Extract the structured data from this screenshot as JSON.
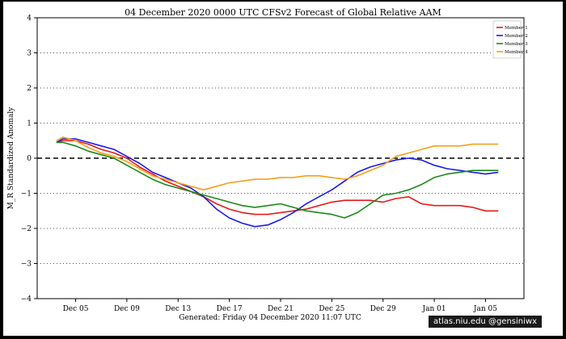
{
  "chart_data": {
    "type": "line",
    "title": "04 December 2020 0000 UTC CFSv2 Forecast of Global Relative AAM",
    "ylabel": "M_R Standardized Anomaly",
    "ylim": [
      -4,
      4
    ],
    "yticks": [
      -4,
      -3,
      -2,
      -1,
      0,
      1,
      2,
      3,
      4
    ],
    "ytick_labels": [
      "−4",
      "−3",
      "−2",
      "−1",
      "0",
      "1",
      "2",
      "3",
      "4"
    ],
    "xlim": [
      0,
      38
    ],
    "xticks": [
      {
        "x": 3,
        "label": "Dec 05"
      },
      {
        "x": 7,
        "label": "Dec 09"
      },
      {
        "x": 11,
        "label": "Dec 13"
      },
      {
        "x": 15,
        "label": "Dec 17"
      },
      {
        "x": 19,
        "label": "Dec 21"
      },
      {
        "x": 23,
        "label": "Dec 25"
      },
      {
        "x": 27,
        "label": "Dec 29"
      },
      {
        "x": 31,
        "label": "Jan 01"
      },
      {
        "x": 35,
        "label": "Jan 05"
      }
    ],
    "grid_lines_y": [
      -3,
      -2,
      -1,
      1,
      2,
      3
    ],
    "zero_line": 0,
    "legend_position": "top-right",
    "footer": "Generated: Friday 04 December 2020 11:07 UTC",
    "series": [
      {
        "name": "Member 1",
        "color": "#e8191a",
        "x": [
          1.5,
          2,
          3,
          4,
          5,
          6,
          7,
          8,
          9,
          10,
          11,
          12,
          13,
          14,
          15,
          16,
          17,
          18,
          19,
          20,
          21,
          22,
          23,
          24,
          25,
          26,
          27,
          28,
          29,
          30,
          31,
          32,
          33,
          34,
          35,
          36
        ],
        "y": [
          0.45,
          0.5,
          0.5,
          0.4,
          0.25,
          0.15,
          0.0,
          -0.25,
          -0.45,
          -0.65,
          -0.8,
          -0.95,
          -1.1,
          -1.3,
          -1.45,
          -1.55,
          -1.6,
          -1.6,
          -1.55,
          -1.5,
          -1.45,
          -1.35,
          -1.25,
          -1.2,
          -1.2,
          -1.2,
          -1.25,
          -1.15,
          -1.1,
          -1.3,
          -1.35,
          -1.35,
          -1.35,
          -1.4,
          -1.5,
          -1.5
        ]
      },
      {
        "name": "Member 2",
        "color": "#1a1ae8",
        "x": [
          1.5,
          2,
          3,
          4,
          5,
          6,
          7,
          8,
          9,
          10,
          11,
          12,
          13,
          14,
          15,
          16,
          17,
          18,
          19,
          20,
          21,
          22,
          23,
          24,
          25,
          26,
          27,
          28,
          29,
          30,
          31,
          32,
          33,
          34,
          35,
          36
        ],
        "y": [
          0.45,
          0.55,
          0.55,
          0.45,
          0.35,
          0.25,
          0.05,
          -0.15,
          -0.4,
          -0.55,
          -0.7,
          -0.85,
          -1.1,
          -1.45,
          -1.7,
          -1.85,
          -1.95,
          -1.9,
          -1.75,
          -1.55,
          -1.3,
          -1.1,
          -0.9,
          -0.65,
          -0.4,
          -0.25,
          -0.15,
          -0.05,
          0.0,
          -0.05,
          -0.2,
          -0.3,
          -0.35,
          -0.4,
          -0.45,
          -0.4
        ]
      },
      {
        "name": "Member 3",
        "color": "#1a8a1a",
        "x": [
          1.5,
          2,
          3,
          4,
          5,
          6,
          7,
          8,
          9,
          10,
          11,
          12,
          13,
          14,
          15,
          16,
          17,
          18,
          19,
          20,
          21,
          22,
          23,
          24,
          25,
          26,
          27,
          28,
          29,
          30,
          31,
          32,
          33,
          34,
          35,
          36
        ],
        "y": [
          0.45,
          0.45,
          0.35,
          0.2,
          0.1,
          0.0,
          -0.2,
          -0.4,
          -0.6,
          -0.75,
          -0.85,
          -0.95,
          -1.05,
          -1.15,
          -1.25,
          -1.35,
          -1.4,
          -1.35,
          -1.3,
          -1.4,
          -1.5,
          -1.55,
          -1.6,
          -1.7,
          -1.55,
          -1.3,
          -1.05,
          -1.0,
          -0.9,
          -0.75,
          -0.55,
          -0.45,
          -0.4,
          -0.35,
          -0.35,
          -0.35
        ]
      },
      {
        "name": "Member 4",
        "color": "#f5a01a",
        "x": [
          1.5,
          2,
          3,
          4,
          5,
          6,
          7,
          8,
          9,
          10,
          11,
          12,
          13,
          14,
          15,
          16,
          17,
          18,
          19,
          20,
          21,
          22,
          23,
          24,
          25,
          26,
          27,
          28,
          29,
          30,
          31,
          32,
          33,
          34,
          35,
          36
        ],
        "y": [
          0.5,
          0.6,
          0.5,
          0.3,
          0.15,
          0.05,
          -0.1,
          -0.3,
          -0.5,
          -0.6,
          -0.7,
          -0.8,
          -0.9,
          -0.8,
          -0.7,
          -0.65,
          -0.6,
          -0.6,
          -0.55,
          -0.55,
          -0.5,
          -0.5,
          -0.55,
          -0.6,
          -0.5,
          -0.35,
          -0.2,
          0.05,
          0.15,
          0.25,
          0.35,
          0.35,
          0.35,
          0.4,
          0.4,
          0.4
        ]
      }
    ]
  },
  "credit": "atlas.niu.edu @gensiniwx"
}
